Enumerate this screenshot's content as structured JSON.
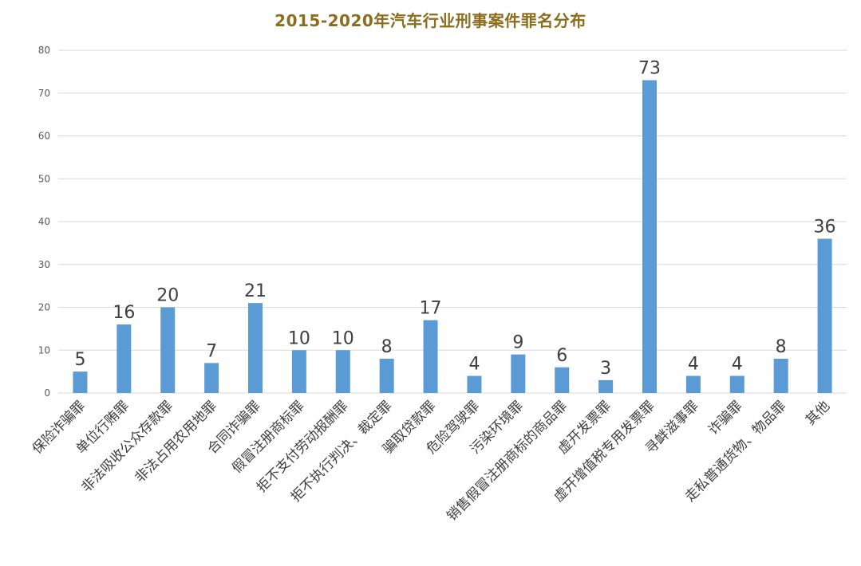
{
  "chart_data": {
    "type": "bar",
    "title": "2015-2020年汽车行业刑事案件罪名分布",
    "xlabel": "",
    "ylabel": "",
    "ylim": [
      0,
      80
    ],
    "yticks": [
      0,
      10,
      20,
      30,
      40,
      50,
      60,
      70,
      80
    ],
    "grid": true,
    "legend": "none",
    "bar_color": "#5b9bd5",
    "title_color": "#8b6d1c",
    "categories": [
      "保险诈骗罪",
      "单位行贿罪",
      "非法吸收公众存款罪",
      "非法占用农用地罪",
      "合同诈骗罪",
      "假冒注册商标罪",
      "拒不支付劳动报酬罪",
      "拒不执行判决、裁定罪",
      "骗取贷款罪",
      "危险驾驶罪",
      "污染环境罪",
      "销售假冒注册商标的商品罪",
      "虚开发票罪",
      "虚开增值税专用发票罪",
      "寻衅滋事罪",
      "诈骗罪",
      "走私普通货物、物品罪",
      "其他"
    ],
    "values": [
      5,
      16,
      20,
      7,
      21,
      10,
      10,
      8,
      17,
      4,
      9,
      6,
      3,
      73,
      4,
      4,
      8,
      36
    ]
  }
}
